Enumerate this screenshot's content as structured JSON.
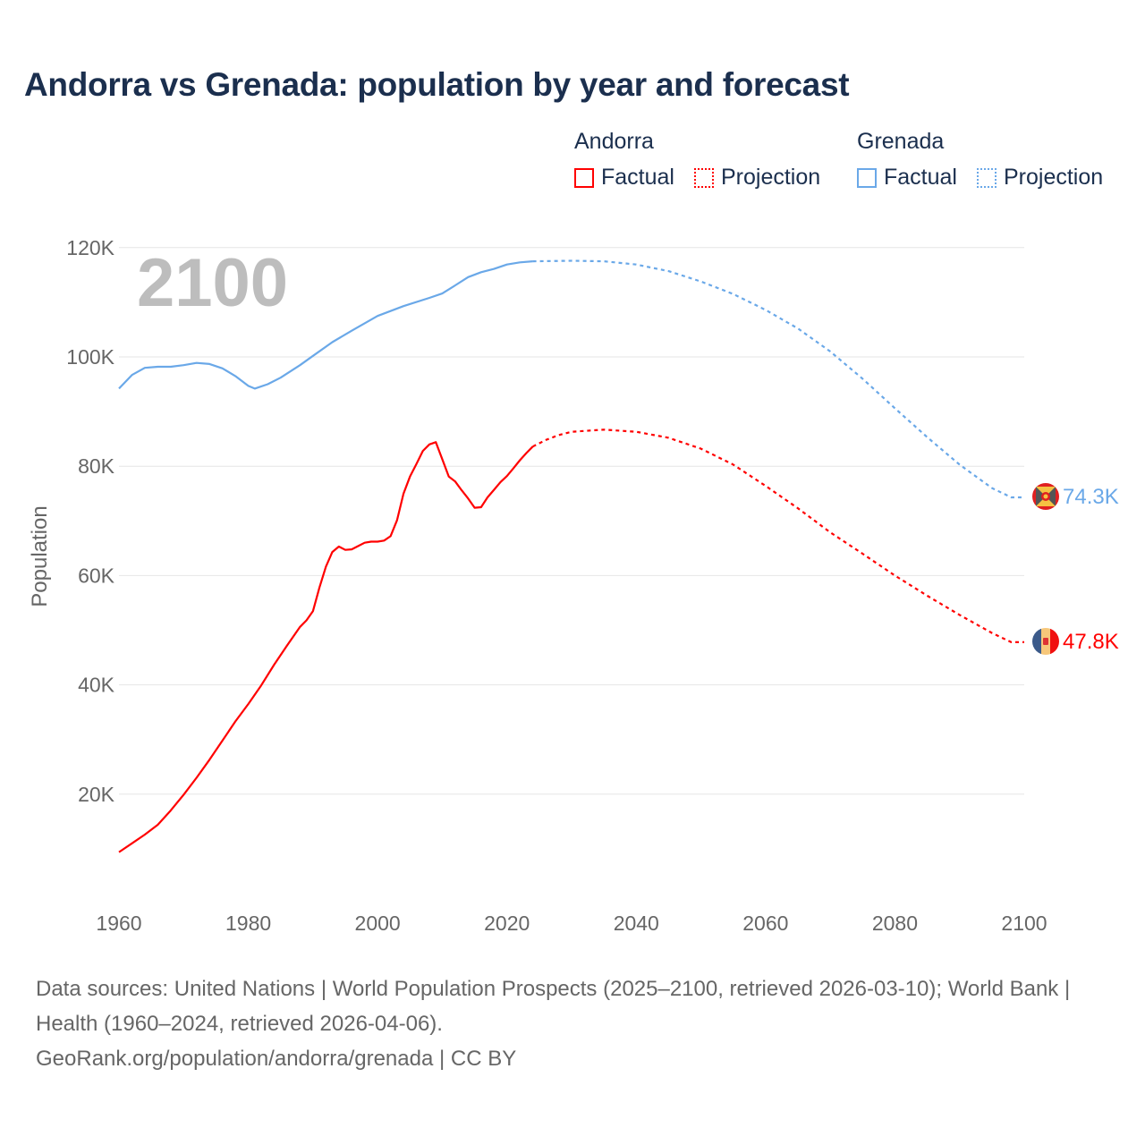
{
  "chart_data": {
    "type": "line",
    "title": "Andorra vs Grenada: population by year and forecast",
    "xlabel": "",
    "ylabel": "Population",
    "xlim": [
      1960,
      2100
    ],
    "ylim": [
      0,
      125000
    ],
    "x_ticks": [
      1960,
      1980,
      2000,
      2020,
      2040,
      2060,
      2080,
      2100
    ],
    "x_tick_labels": [
      "1960",
      "1980",
      "2000",
      "2020",
      "2040",
      "2060",
      "2080",
      "2100"
    ],
    "y_ticks": [
      20000,
      40000,
      60000,
      80000,
      100000,
      120000
    ],
    "y_tick_labels": [
      "20K",
      "40K",
      "60K",
      "80K",
      "100K",
      "120K"
    ],
    "grid": true,
    "year_watermark": "2100",
    "legend": {
      "placement": "top-right",
      "groups": [
        {
          "title": "Andorra",
          "factual": "Factual",
          "projection": "Projection"
        },
        {
          "title": "Grenada",
          "factual": "Factual",
          "projection": "Projection"
        }
      ]
    },
    "series": [
      {
        "name": "Andorra",
        "color": "#ff0000",
        "end_label": "47.8K",
        "flag": "andorra-flag",
        "factual": {
          "x": [
            1960,
            1962,
            1964,
            1966,
            1968,
            1970,
            1972,
            1974,
            1976,
            1978,
            1980,
            1982,
            1984,
            1986,
            1988,
            1989,
            1990,
            1991,
            1992,
            1993,
            1994,
            1995,
            1996,
            1997,
            1998,
            1999,
            2000,
            2001,
            2002,
            2003,
            2004,
            2005,
            2006,
            2007,
            2008,
            2009,
            2010,
            2011,
            2012,
            2013,
            2014,
            2015,
            2016,
            2017,
            2018,
            2019,
            2020,
            2021,
            2022,
            2023,
            2024
          ],
          "y": [
            9400,
            11000,
            12600,
            14400,
            17000,
            19900,
            23000,
            26300,
            29800,
            33300,
            36500,
            39900,
            43700,
            47200,
            50600,
            51800,
            53500,
            57800,
            61600,
            64300,
            65300,
            64700,
            64800,
            65400,
            66000,
            66200,
            66200,
            66400,
            67200,
            70100,
            75000,
            78100,
            80400,
            82800,
            84000,
            84400,
            81300,
            78100,
            77200,
            75600,
            74100,
            72400,
            72500,
            74300,
            75700,
            77100,
            78200,
            79600,
            81100,
            82400,
            83600
          ]
        },
        "projection": {
          "x": [
            2024,
            2026,
            2028,
            2030,
            2035,
            2040,
            2045,
            2050,
            2055,
            2060,
            2065,
            2070,
            2075,
            2080,
            2085,
            2090,
            2095,
            2098,
            2100
          ],
          "y": [
            83600,
            84800,
            85700,
            86300,
            86700,
            86300,
            85200,
            83200,
            80300,
            76400,
            72300,
            67900,
            64000,
            60000,
            56300,
            52800,
            49500,
            47800,
            47800
          ]
        }
      },
      {
        "name": "Grenada",
        "color": "#6aa8e8",
        "end_label": "74.3K",
        "flag": "grenada-flag",
        "factual": {
          "x": [
            1960,
            1962,
            1964,
            1966,
            1968,
            1970,
            1972,
            1974,
            1976,
            1978,
            1980,
            1981,
            1983,
            1985,
            1988,
            1990,
            1993,
            1996,
            2000,
            2004,
            2008,
            2010,
            2012,
            2014,
            2016,
            2018,
            2020,
            2022,
            2024
          ],
          "y": [
            94200,
            96700,
            98000,
            98200,
            98200,
            98500,
            98900,
            98700,
            97900,
            96500,
            94700,
            94200,
            95000,
            96200,
            98500,
            100200,
            102700,
            104800,
            107500,
            109300,
            110800,
            111600,
            113100,
            114600,
            115500,
            116100,
            116900,
            117300,
            117500
          ]
        },
        "projection": {
          "x": [
            2024,
            2030,
            2035,
            2040,
            2045,
            2050,
            2055,
            2060,
            2065,
            2070,
            2075,
            2080,
            2085,
            2090,
            2095,
            2098,
            2100
          ],
          "y": [
            117500,
            117600,
            117500,
            116900,
            115700,
            113800,
            111500,
            108600,
            105200,
            101000,
            96000,
            90600,
            85300,
            80300,
            76000,
            74300,
            74300
          ]
        }
      }
    ]
  },
  "footer": {
    "sources": "Data sources: United Nations | World Population Prospects (2025–2100, retrieved 2026-03-10); World Bank | Health (1960–2024, retrieved 2026-04-06).",
    "credit": "GeoRank.org/population/andorra/grenada | CC BY"
  }
}
